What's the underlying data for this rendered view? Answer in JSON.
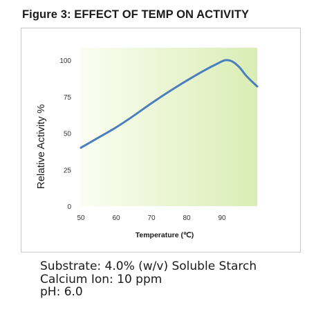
{
  "figure_title": "Figure 3: EFFECT OF TEMP ON ACTIVITY",
  "chart_data": {
    "type": "line",
    "xlabel": "Temperature (℃)",
    "ylabel": "Relative Activity %",
    "xlim": [
      50,
      100
    ],
    "ylim": [
      0,
      105
    ],
    "x_ticks": [
      "50",
      "60",
      "70",
      "80",
      "90"
    ],
    "y_ticks": [
      "0",
      "25",
      "50",
      "75",
      "100"
    ],
    "grid": false,
    "background": "green-gradient",
    "line_color": "#4a7fbd",
    "series": [
      {
        "x": [
          50,
          55,
          60,
          65,
          70,
          75,
          80,
          85,
          89,
          91,
          93,
          95,
          97,
          100
        ],
        "y": [
          40,
          47,
          54,
          62,
          70.5,
          78.5,
          86,
          93,
          98,
          100,
          99,
          95,
          89,
          82
        ]
      }
    ]
  },
  "notes": [
    "Substrate: 4.0% (w/v) Soluble Starch",
    "Calcium Ion: 10 ppm",
    "pH: 6.0"
  ]
}
